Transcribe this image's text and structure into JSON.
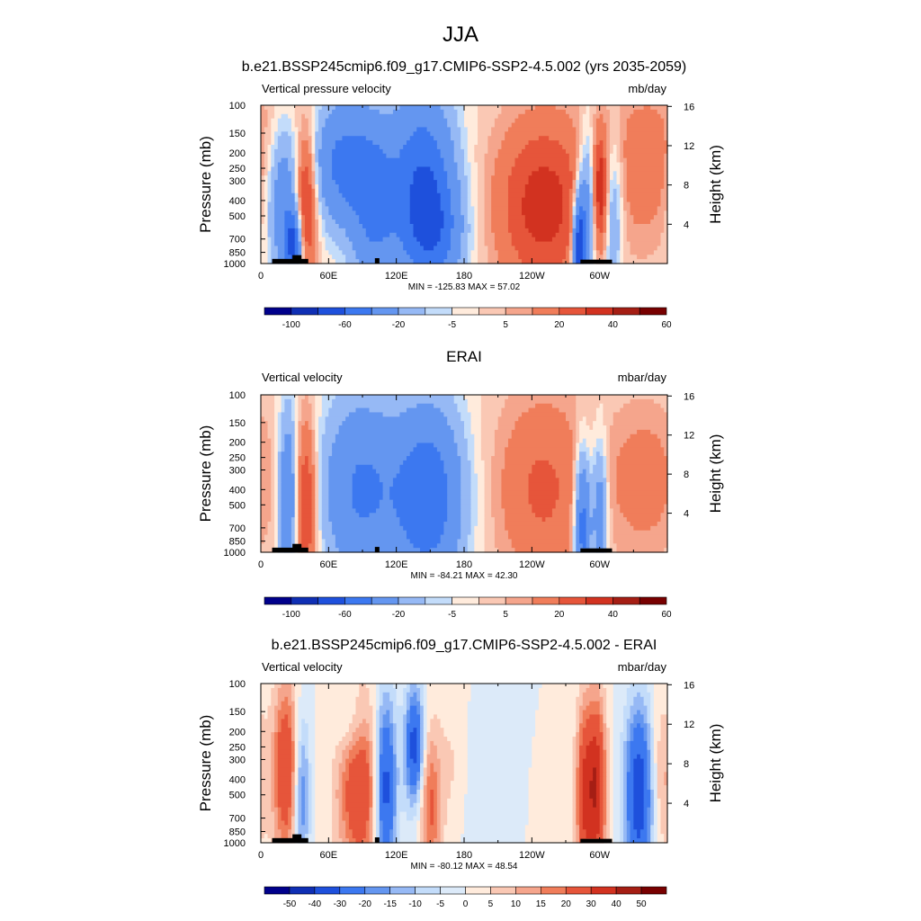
{
  "season_title": "JJA",
  "colors": {
    "ramp_main": [
      "#00008b",
      "#0f2fb4",
      "#1e50dc",
      "#3c78f0",
      "#6496f0",
      "#96b9f5",
      "#c3dcfa",
      "#ffebdc",
      "#fac8b4",
      "#f5a58c",
      "#f07d5a",
      "#e6553a",
      "#d23220",
      "#a51e14",
      "#780000"
    ],
    "ramp_diff": [
      "#00008b",
      "#0f2fb4",
      "#1e50dc",
      "#3c78f0",
      "#6496f0",
      "#96b9f5",
      "#c3dcfa",
      "#dceaf9",
      "#ffebdc",
      "#fac8b4",
      "#f5a58c",
      "#f07d5a",
      "#e6553a",
      "#d23220",
      "#a51e14",
      "#780000"
    ],
    "topography": "#000000"
  },
  "chart_data": [
    {
      "type": "heatmap",
      "title": "b.e21.BSSP245cmip6.f09_g17.CMIP6-SSP2-4.5.002 (yrs 2035-2059)",
      "left_label": "Vertical pressure velocity",
      "units": "mb/day",
      "ylabel": "Pressure (mb)",
      "y2label": "Height (km)",
      "x_ticks": [
        "0",
        "60E",
        "120E",
        "180",
        "120W",
        "60W"
      ],
      "x_tick_values": [
        0,
        60,
        120,
        180,
        240,
        300
      ],
      "xlim": [
        0,
        360
      ],
      "y_ticks": [
        "100",
        "150",
        "200",
        "250",
        "300",
        "400",
        "500",
        "700",
        "850",
        "1000"
      ],
      "y_tick_values": [
        100,
        150,
        200,
        250,
        300,
        400,
        500,
        700,
        850,
        1000
      ],
      "y2_ticks": [
        "4",
        "8",
        "12",
        "16"
      ],
      "y2_tick_values": [
        4,
        8,
        12,
        16
      ],
      "ylim": [
        1000,
        100
      ],
      "stats": "MIN = -125.83  MAX =  57.02",
      "colorbar_levels": [
        -100,
        -80,
        -60,
        -40,
        -20,
        -10,
        -5,
        0,
        5,
        10,
        20,
        30,
        40,
        50,
        60
      ],
      "colorbar_labels": [
        "-100",
        "-60",
        "-20",
        "-5",
        "5",
        "20",
        "40",
        "60"
      ],
      "features": [
        {
          "lon": 20,
          "width": 10,
          "p": 420,
          "pw": 0.8,
          "v": -35
        },
        {
          "lon": 29,
          "width": 5,
          "p": 780,
          "pw": 0.35,
          "v": -60
        },
        {
          "lon": 40,
          "width": 7,
          "p": 400,
          "pw": 0.75,
          "v": 42
        },
        {
          "lon": 72,
          "width": 20,
          "p": 230,
          "pw": 0.65,
          "v": -45
        },
        {
          "lon": 100,
          "width": 14,
          "p": 450,
          "pw": 0.85,
          "v": -38
        },
        {
          "lon": 143,
          "width": 20,
          "p": 320,
          "pw": 0.95,
          "v": -58
        },
        {
          "lon": 155,
          "width": 18,
          "p": 650,
          "pw": 0.55,
          "v": -30
        },
        {
          "lon": 250,
          "width": 30,
          "p": 430,
          "pw": 0.9,
          "v": 36
        },
        {
          "lon": 282,
          "width": 4,
          "p": 800,
          "pw": 0.55,
          "v": -80
        },
        {
          "lon": 290,
          "width": 6,
          "p": 420,
          "pw": 0.75,
          "v": -40
        },
        {
          "lon": 300,
          "width": 5,
          "p": 350,
          "pw": 0.6,
          "v": 38
        },
        {
          "lon": 312,
          "width": 6,
          "p": 500,
          "pw": 0.8,
          "v": -25
        },
        {
          "lon": 340,
          "width": 20,
          "p": 300,
          "pw": 0.8,
          "v": 12
        },
        {
          "lon": 350,
          "width": 40,
          "p": 150,
          "pw": 0.7,
          "v": 6
        }
      ]
    },
    {
      "type": "heatmap",
      "title": "ERAI",
      "left_label": "Vertical velocity",
      "units": "mbar/day",
      "ylabel": "Pressure (mb)",
      "y2label": "Height (km)",
      "x_ticks": [
        "0",
        "60E",
        "120E",
        "180",
        "120W",
        "60W"
      ],
      "x_tick_values": [
        0,
        60,
        120,
        180,
        240,
        300
      ],
      "xlim": [
        0,
        360
      ],
      "y_ticks": [
        "100",
        "150",
        "200",
        "250",
        "300",
        "400",
        "500",
        "700",
        "850",
        "1000"
      ],
      "y_tick_values": [
        100,
        150,
        200,
        250,
        300,
        400,
        500,
        700,
        850,
        1000
      ],
      "y2_ticks": [
        "4",
        "8",
        "12",
        "16"
      ],
      "y2_tick_values": [
        4,
        8,
        12,
        16
      ],
      "ylim": [
        1000,
        100
      ],
      "stats": "MIN = -84.21  MAX =  42.30",
      "colorbar_levels": [
        -100,
        -80,
        -60,
        -40,
        -20,
        -10,
        -5,
        0,
        5,
        10,
        20,
        30,
        40,
        50,
        60
      ],
      "colorbar_labels": [
        "-100",
        "-60",
        "-20",
        "-5",
        "5",
        "20",
        "40",
        "60"
      ],
      "features": [
        {
          "lon": 24,
          "width": 6,
          "p": 450,
          "pw": 0.9,
          "v": -40
        },
        {
          "lon": 40,
          "width": 7,
          "p": 500,
          "pw": 0.9,
          "v": 35
        },
        {
          "lon": 88,
          "width": 24,
          "p": 400,
          "pw": 0.95,
          "v": -42
        },
        {
          "lon": 148,
          "width": 22,
          "p": 450,
          "pw": 0.95,
          "v": -55
        },
        {
          "lon": 250,
          "width": 30,
          "p": 400,
          "pw": 1.0,
          "v": 22
        },
        {
          "lon": 285,
          "width": 5,
          "p": 650,
          "pw": 0.75,
          "v": -55
        },
        {
          "lon": 300,
          "width": 5,
          "p": 550,
          "pw": 0.75,
          "v": -35
        },
        {
          "lon": 340,
          "width": 24,
          "p": 350,
          "pw": 0.8,
          "v": 15
        }
      ]
    },
    {
      "type": "heatmap",
      "title": "b.e21.BSSP245cmip6.f09_g17.CMIP6-SSP2-4.5.002 - ERAI",
      "left_label": "Vertical velocity",
      "units": "mbar/day",
      "ylabel": "Pressure (mb)",
      "y2label": "Height (km)",
      "x_ticks": [
        "0",
        "60E",
        "120E",
        "180",
        "120W",
        "60W"
      ],
      "x_tick_values": [
        0,
        60,
        120,
        180,
        240,
        300
      ],
      "xlim": [
        0,
        360
      ],
      "y_ticks": [
        "100",
        "150",
        "200",
        "250",
        "300",
        "400",
        "500",
        "700",
        "850",
        "1000"
      ],
      "y_tick_values": [
        100,
        150,
        200,
        250,
        300,
        400,
        500,
        700,
        850,
        1000
      ],
      "y2_ticks": [
        "4",
        "8",
        "12",
        "16"
      ],
      "y2_tick_values": [
        4,
        8,
        12,
        16
      ],
      "ylim": [
        1000,
        100
      ],
      "stats": "MIN = -80.12  MAX =  48.54",
      "colorbar_levels": [
        -50,
        -40,
        -30,
        -20,
        -15,
        -10,
        -5,
        0,
        5,
        10,
        15,
        20,
        30,
        40,
        50
      ],
      "colorbar_labels": [
        "-50",
        "-40",
        "-30",
        "-20",
        "-15",
        "-10",
        "-5",
        "0",
        "5",
        "10",
        "15",
        "20",
        "30",
        "40",
        "50"
      ],
      "features": [
        {
          "lon": 22,
          "width": 8,
          "p": 350,
          "pw": 0.9,
          "v": 30
        },
        {
          "lon": 36,
          "width": 5,
          "p": 500,
          "pw": 0.8,
          "v": -22
        },
        {
          "lon": 80,
          "width": 10,
          "p": 180,
          "pw": 0.4,
          "v": -10
        },
        {
          "lon": 88,
          "width": 14,
          "p": 450,
          "pw": 0.9,
          "v": 30
        },
        {
          "lon": 110,
          "width": 7,
          "p": 450,
          "pw": 0.9,
          "v": -40
        },
        {
          "lon": 136,
          "width": 6,
          "p": 250,
          "pw": 0.6,
          "v": -35
        },
        {
          "lon": 150,
          "width": 7,
          "p": 600,
          "pw": 0.8,
          "v": 22
        },
        {
          "lon": 170,
          "width": 10,
          "p": 350,
          "pw": 0.8,
          "v": 7
        },
        {
          "lon": 200,
          "width": 30,
          "p": 500,
          "pw": 0.9,
          "v": -4
        },
        {
          "lon": 260,
          "width": 25,
          "p": 600,
          "pw": 0.8,
          "v": 3
        },
        {
          "lon": 286,
          "width": 5,
          "p": 500,
          "pw": 0.95,
          "v": 25
        },
        {
          "lon": 297,
          "width": 6,
          "p": 450,
          "pw": 0.9,
          "v": 38
        },
        {
          "lon": 335,
          "width": 9,
          "p": 500,
          "pw": 0.9,
          "v": -38
        },
        {
          "lon": 355,
          "width": 8,
          "p": 400,
          "pw": 0.8,
          "v": 12
        }
      ]
    }
  ],
  "topography": [
    {
      "lon_start": 10,
      "lon_end": 42,
      "p_top": 935
    },
    {
      "lon_start": 28,
      "lon_end": 36,
      "p_top": 885
    },
    {
      "lon_start": 101,
      "lon_end": 105,
      "p_top": 925
    },
    {
      "lon_start": 283,
      "lon_end": 311,
      "p_top": 945
    }
  ]
}
